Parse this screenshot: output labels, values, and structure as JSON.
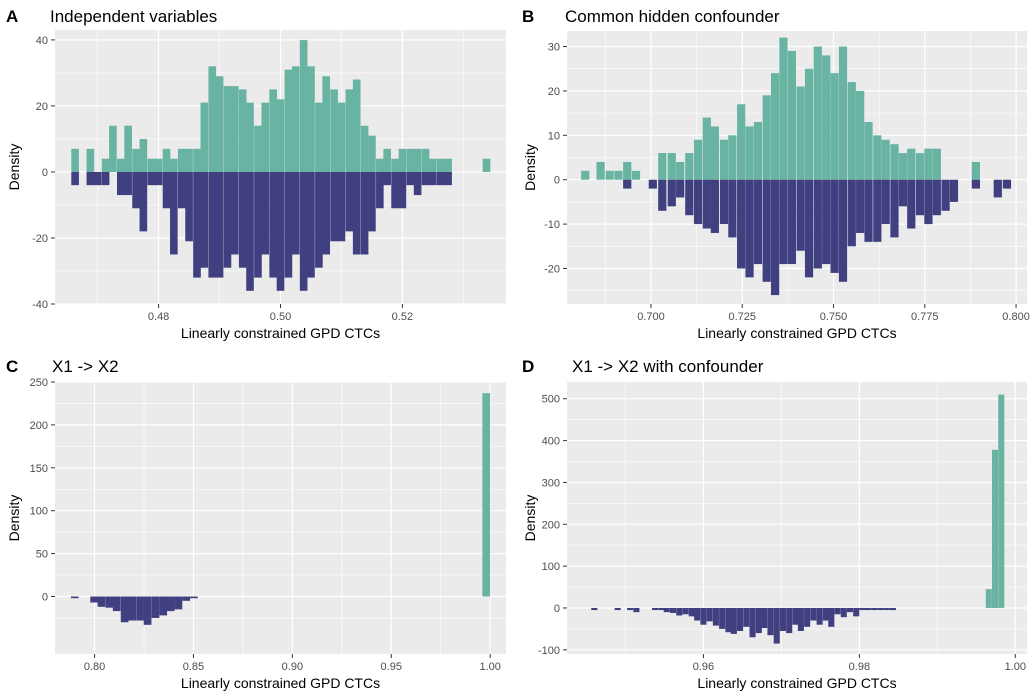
{
  "colors": {
    "series_upper": "#69b3a2",
    "series_lower": "#404080",
    "panel_bg": "#ebebeb",
    "grid": "#ffffff"
  },
  "chart_data": [
    {
      "type": "bar",
      "tag": "A",
      "title": "Independent variables",
      "xlabel": "Linearly constrained GPD CTCs",
      "ylabel": "Density",
      "xlim": [
        0.463,
        0.537
      ],
      "ylim": [
        -40,
        43
      ],
      "xticks": [
        0.48,
        0.5,
        0.52
      ],
      "xtick_labels": [
        "0.48",
        "0.50",
        "0.52"
      ],
      "yticks": [
        -40,
        -20,
        0,
        20,
        40
      ],
      "ytick_labels": [
        "-40",
        "-20",
        "0",
        "20",
        "40"
      ],
      "grid": true,
      "bin_width": 0.00125,
      "upper_x": [
        0.4663,
        0.4688,
        0.4713,
        0.4725,
        0.4738,
        0.475,
        0.4763,
        0.4775,
        0.4788,
        0.48,
        0.4813,
        0.4825,
        0.4838,
        0.485,
        0.4863,
        0.4875,
        0.4888,
        0.49,
        0.4913,
        0.4925,
        0.4938,
        0.495,
        0.4963,
        0.4975,
        0.4988,
        0.5,
        0.5013,
        0.5025,
        0.5038,
        0.505,
        0.5063,
        0.5075,
        0.5088,
        0.51,
        0.5113,
        0.5125,
        0.5138,
        0.515,
        0.5163,
        0.5175,
        0.5188,
        0.52,
        0.5213,
        0.5225,
        0.5238,
        0.525,
        0.5263,
        0.5275,
        0.5338
      ],
      "upper_y": [
        7,
        7,
        4,
        14,
        4,
        14,
        7,
        10,
        4,
        4,
        7,
        4,
        7,
        7,
        7,
        21,
        32,
        29,
        26,
        26,
        25,
        21,
        14,
        21,
        25,
        22,
        31,
        32,
        40,
        32,
        21,
        29,
        25,
        21,
        25,
        28,
        14,
        11,
        4,
        7,
        4,
        7,
        7,
        7,
        7,
        4,
        4,
        4,
        4
      ],
      "lower_x": [
        0.4663,
        0.4688,
        0.47,
        0.4713,
        0.4738,
        0.475,
        0.4763,
        0.4775,
        0.4788,
        0.48,
        0.4813,
        0.4825,
        0.4838,
        0.485,
        0.4863,
        0.4875,
        0.4888,
        0.49,
        0.4913,
        0.4925,
        0.4938,
        0.495,
        0.4963,
        0.4975,
        0.4988,
        0.5,
        0.5013,
        0.5025,
        0.5038,
        0.505,
        0.5063,
        0.5075,
        0.5088,
        0.51,
        0.5113,
        0.5125,
        0.5138,
        0.515,
        0.5163,
        0.5175,
        0.5188,
        0.52,
        0.5213,
        0.5225,
        0.5238,
        0.525,
        0.5263,
        0.5275
      ],
      "lower_y": [
        4,
        4,
        4,
        4,
        7,
        7,
        11,
        18,
        4,
        4,
        11,
        25,
        11,
        21,
        32,
        29,
        32,
        32,
        29,
        25,
        29,
        36,
        32,
        25,
        32,
        36,
        32,
        25,
        36,
        32,
        29,
        25,
        21,
        21,
        18,
        25,
        25,
        18,
        11,
        4,
        11,
        11,
        4,
        7,
        4,
        4,
        4,
        4
      ]
    },
    {
      "type": "bar",
      "tag": "B",
      "title": "Common hidden confounder",
      "xlabel": "Linearly constrained GPD CTCs",
      "ylabel": "Density",
      "xlim": [
        0.677,
        0.803
      ],
      "ylim": [
        -28,
        33.5
      ],
      "xticks": [
        0.7,
        0.725,
        0.75,
        0.775,
        0.8
      ],
      "xtick_labels": [
        "0.700",
        "0.725",
        "0.750",
        "0.775",
        "0.800"
      ],
      "yticks": [
        -20,
        -10,
        0,
        10,
        20,
        30
      ],
      "ytick_labels": [
        "-20",
        "-10",
        "0",
        "10",
        "20",
        "30"
      ],
      "grid": true,
      "bin_width": 0.00225,
      "upper_x": [
        0.682,
        0.6862,
        0.6887,
        0.6911,
        0.6935,
        0.6959,
        0.7031,
        0.7057,
        0.708,
        0.7105,
        0.7129,
        0.7153,
        0.7175,
        0.72,
        0.7223,
        0.7247,
        0.727,
        0.7293,
        0.7317,
        0.734,
        0.7363,
        0.7386,
        0.741,
        0.7433,
        0.7457,
        0.748,
        0.7503,
        0.7526,
        0.755,
        0.7573,
        0.7596,
        0.762,
        0.7643,
        0.7667,
        0.769,
        0.7713,
        0.7737,
        0.776,
        0.7783,
        0.789
      ],
      "upper_y": [
        2,
        4,
        2,
        2,
        4,
        2,
        6,
        6,
        4,
        6,
        9,
        14,
        12,
        9,
        10,
        17,
        12,
        13,
        19,
        24,
        32,
        29,
        21,
        25,
        30,
        28,
        24,
        30,
        22,
        20,
        13,
        10,
        9,
        8,
        6,
        7,
        6,
        7,
        7,
        4
      ],
      "lower_x": [
        0.6935,
        0.7005,
        0.7031,
        0.7057,
        0.708,
        0.7105,
        0.7129,
        0.7153,
        0.7175,
        0.72,
        0.7223,
        0.7247,
        0.727,
        0.7293,
        0.7317,
        0.734,
        0.7363,
        0.7386,
        0.741,
        0.7433,
        0.7457,
        0.748,
        0.7503,
        0.7526,
        0.755,
        0.7573,
        0.7596,
        0.762,
        0.7643,
        0.7667,
        0.769,
        0.7713,
        0.7737,
        0.776,
        0.7783,
        0.7807,
        0.783,
        0.789,
        0.795,
        0.7975
      ],
      "lower_y": [
        2,
        2,
        7,
        6,
        4,
        8,
        10,
        11,
        12,
        10,
        13,
        20,
        22,
        19,
        23,
        26,
        19,
        19,
        16,
        22,
        20,
        19,
        21,
        23,
        15,
        12,
        14,
        14,
        10,
        13,
        6,
        11,
        8,
        10,
        8,
        7,
        5,
        2,
        4,
        2
      ]
    },
    {
      "type": "bar",
      "tag": "C",
      "title": "X1 -> X2",
      "xlabel": "Linearly constrained GPD CTCs",
      "ylabel": "Density",
      "xlim": [
        0.78,
        1.008
      ],
      "ylim": [
        -67,
        250
      ],
      "xticks": [
        0.8,
        0.85,
        0.9,
        0.95,
        1.0
      ],
      "xtick_labels": [
        "0.80",
        "0.85",
        "0.90",
        "0.95",
        "1.00"
      ],
      "yticks": [
        0,
        50,
        100,
        150,
        200,
        250
      ],
      "ytick_labels": [
        "0",
        "50",
        "100",
        "150",
        "200",
        "250"
      ],
      "grid": true,
      "bin_width": 0.0039,
      "upper_x": [
        0.998
      ],
      "upper_y": [
        237
      ],
      "lower_x": [
        0.79,
        0.7998,
        0.8035,
        0.8075,
        0.8112,
        0.8152,
        0.819,
        0.823,
        0.8268,
        0.8308,
        0.8347,
        0.8385,
        0.8424,
        0.8463,
        0.8502
      ],
      "lower_y": [
        2,
        7,
        12,
        13,
        17,
        30,
        28,
        28,
        33,
        25,
        22,
        17,
        15,
        5,
        2
      ]
    },
    {
      "type": "bar",
      "tag": "D",
      "title": "X1 -> X2 with confounder",
      "xlabel": "Linearly constrained GPD CTCs",
      "ylabel": "Density",
      "xlim": [
        0.9425,
        1.0015
      ],
      "ylim": [
        -110,
        540
      ],
      "xticks": [
        0.96,
        0.98,
        1.0
      ],
      "xtick_labels": [
        "0.96",
        "0.98",
        "1.00"
      ],
      "yticks": [
        -100,
        0,
        100,
        200,
        300,
        400,
        500
      ],
      "ytick_labels": [
        "-100",
        "0",
        "100",
        "200",
        "300",
        "400",
        "500"
      ],
      "grid": true,
      "bin_width": 0.00078,
      "upper_x": [
        0.9966,
        0.9974,
        0.9982
      ],
      "upper_y": [
        45,
        378,
        510
      ],
      "lower_x": [
        0.946,
        0.949,
        0.9506,
        0.9514,
        0.9538,
        0.9546,
        0.9553,
        0.9561,
        0.9569,
        0.9577,
        0.9585,
        0.9592,
        0.96,
        0.9608,
        0.9616,
        0.9624,
        0.9632,
        0.9639,
        0.9647,
        0.9655,
        0.9663,
        0.9671,
        0.9678,
        0.9686,
        0.9694,
        0.9702,
        0.971,
        0.9718,
        0.9725,
        0.9733,
        0.9741,
        0.9749,
        0.9757,
        0.9764,
        0.9772,
        0.978,
        0.9788,
        0.9796,
        0.9804,
        0.9811,
        0.9819,
        0.9827,
        0.9835,
        0.9843
      ],
      "lower_y": [
        5,
        5,
        5,
        10,
        5,
        5,
        10,
        12,
        18,
        15,
        20,
        30,
        40,
        32,
        42,
        50,
        58,
        62,
        55,
        45,
        70,
        60,
        48,
        65,
        85,
        55,
        60,
        40,
        55,
        45,
        30,
        40,
        30,
        45,
        15,
        22,
        10,
        20,
        5,
        5,
        5,
        5,
        5,
        5
      ]
    }
  ]
}
